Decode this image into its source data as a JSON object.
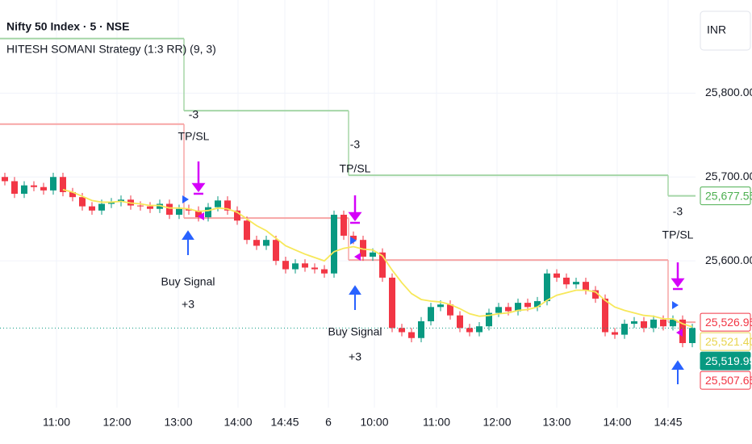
{
  "chart_data": {
    "type": "candlestick",
    "title": "Nifty 50 Index · 5 · NSE",
    "subtitle": "HITESH SOMANI Strategy (1:3 RR) (9, 3)",
    "currency": "INR",
    "up_color": "#089981",
    "down_color": "#f23645",
    "ylim": [
      25425,
      25911
    ],
    "yticks": [
      {
        "value": 25600,
        "label": "25,600.00"
      },
      {
        "value": 25700,
        "label": "25,700.00"
      },
      {
        "value": 25800,
        "label": "25,800.00"
      }
    ],
    "grid": true,
    "xticks": [
      "11:00",
      "12:00",
      "13:00",
      "14:00",
      "14:45",
      "6",
      "10:00",
      "11:00",
      "12:00",
      "13:00",
      "14:00",
      "14:45"
    ],
    "open": [
      25700,
      25695,
      25680,
      25690,
      25688,
      25684,
      25700,
      25682,
      25676,
      25665,
      25660,
      25668,
      25670,
      25673,
      25666,
      25665,
      25662,
      25668,
      25655,
      25662,
      25660,
      25652,
      25664,
      25672,
      25660,
      25648,
      25625,
      25618,
      25625,
      25600,
      25590,
      25597,
      25592,
      25590,
      25585,
      25655,
      25630,
      25625,
      25605,
      25610,
      25580,
      25520,
      25515,
      25508,
      25528,
      25545,
      25548,
      25535,
      25520,
      25515,
      25522,
      25538,
      25545,
      25540,
      25550,
      25545,
      25552,
      25585,
      25580,
      25572,
      25575,
      25565,
      25555,
      25515,
      25512,
      25525,
      25528,
      25520,
      25530,
      25522,
      25530,
      25502
    ],
    "high": [
      25705,
      25700,
      25695,
      25695,
      25693,
      25705,
      25705,
      25687,
      25681,
      25670,
      25673,
      25675,
      25678,
      25678,
      25671,
      25670,
      25673,
      25673,
      25667,
      25667,
      25665,
      25669,
      25677,
      25677,
      25665,
      25653,
      25630,
      25630,
      25630,
      25605,
      25602,
      25602,
      25597,
      25595,
      25660,
      25660,
      25635,
      25630,
      25615,
      25615,
      25585,
      25525,
      25520,
      25533,
      25550,
      25553,
      25553,
      25540,
      25525,
      25527,
      25543,
      25550,
      25550,
      25555,
      25555,
      25557,
      25590,
      25590,
      25585,
      25580,
      25580,
      25570,
      25560,
      25520,
      25530,
      25533,
      25533,
      25535,
      25535,
      25535,
      25535,
      25525
    ],
    "low": [
      25690,
      25675,
      25675,
      25683,
      25679,
      25679,
      25677,
      25671,
      25660,
      25655,
      25655,
      25663,
      25665,
      25661,
      25660,
      25657,
      25657,
      25650,
      25650,
      25655,
      25647,
      25647,
      25659,
      25655,
      25643,
      25620,
      25613,
      25613,
      25595,
      25585,
      25585,
      25587,
      25585,
      25580,
      25580,
      25625,
      25620,
      25600,
      25600,
      25575,
      25515,
      25510,
      25503,
      25503,
      25523,
      25540,
      25530,
      25515,
      25510,
      25510,
      25517,
      25533,
      25535,
      25535,
      25540,
      25540,
      25547,
      25575,
      25567,
      25567,
      25560,
      25550,
      25510,
      25507,
      25507,
      25520,
      25515,
      25515,
      25517,
      25517,
      25497,
      25497
    ],
    "close": [
      25695,
      25680,
      25690,
      25688,
      25684,
      25700,
      25682,
      25676,
      25665,
      25660,
      25668,
      25670,
      25673,
      25666,
      25665,
      25662,
      25668,
      25655,
      25662,
      25660,
      25652,
      25664,
      25672,
      25660,
      25648,
      25625,
      25618,
      25625,
      25600,
      25590,
      25597,
      25592,
      25590,
      25585,
      25655,
      25630,
      25625,
      25605,
      25610,
      25580,
      25520,
      25515,
      25508,
      25528,
      25545,
      25548,
      25535,
      25520,
      25515,
      25522,
      25538,
      25545,
      25540,
      25550,
      25545,
      25552,
      25585,
      25580,
      25572,
      25575,
      25565,
      25555,
      25515,
      25512,
      25525,
      25528,
      25520,
      25530,
      25522,
      25530,
      25502,
      25519.95
    ],
    "ema": {
      "color": "#f7e85a",
      "values": [
        null,
        null,
        null,
        null,
        null,
        null,
        25685,
        25682,
        25677,
        25672,
        25670,
        25670,
        25671,
        25669,
        25668,
        25666,
        25666,
        25663,
        25663,
        25662,
        25659,
        25660,
        25663,
        25662,
        25658,
        25650,
        25642,
        25636,
        25627,
        25618,
        25613,
        25608,
        25604,
        25600,
        25611,
        25615,
        25617,
        25614,
        25613,
        25606,
        25589,
        25574,
        25561,
        25554,
        25552,
        25551,
        25548,
        25543,
        25537,
        25534,
        25535,
        25537,
        25538,
        25541,
        25542,
        25545,
        25553,
        25559,
        25562,
        25565,
        25565,
        25563,
        25553,
        25545,
        25541,
        25538,
        25535,
        25534,
        25531,
        25531,
        25525,
        25521.4
      ]
    },
    "tp_line": {
      "color": "#a5d6a7",
      "segments": [
        {
          "from": 0,
          "to": 18,
          "value": 25865
        },
        {
          "from": 19,
          "to": 35,
          "value": 25779
        },
        {
          "from": 36,
          "to": 68,
          "value": 25702
        },
        {
          "from": 69,
          "to": 71,
          "value": 25677.55
        }
      ]
    },
    "sl_line": {
      "color": "#f7a5a5",
      "segments": [
        {
          "from": 0,
          "to": 18,
          "value": 25763
        },
        {
          "from": 19,
          "to": 35,
          "value": 25651
        },
        {
          "from": 36,
          "to": 68,
          "value": 25601
        },
        {
          "from": 69,
          "to": 71,
          "value": 25526.95
        }
      ]
    },
    "price_labels": [
      {
        "value": 25677.55,
        "label": "25,677.55",
        "color": "#4caf50",
        "filled": false
      },
      {
        "value": 25526.95,
        "label": "25,526.95",
        "color": "#f23645",
        "filled": false
      },
      {
        "value": 25521.4,
        "label": "25,521.40",
        "color": "#e8d44d",
        "filled": false
      },
      {
        "value": 25519.95,
        "label": "25,519.95",
        "color": "#089981",
        "filled": true
      },
      {
        "value": 25507.65,
        "label": "25,507.65",
        "color": "#f23645",
        "filled": false
      }
    ],
    "annotations": [
      [
        "-3",
        "TP/SL"
      ],
      [
        "-3",
        "TP/SL"
      ],
      [
        "-3",
        "TP/SL"
      ],
      [
        "Buy Signal",
        "+3"
      ],
      [
        "Buy Signal",
        "+3"
      ]
    ]
  }
}
